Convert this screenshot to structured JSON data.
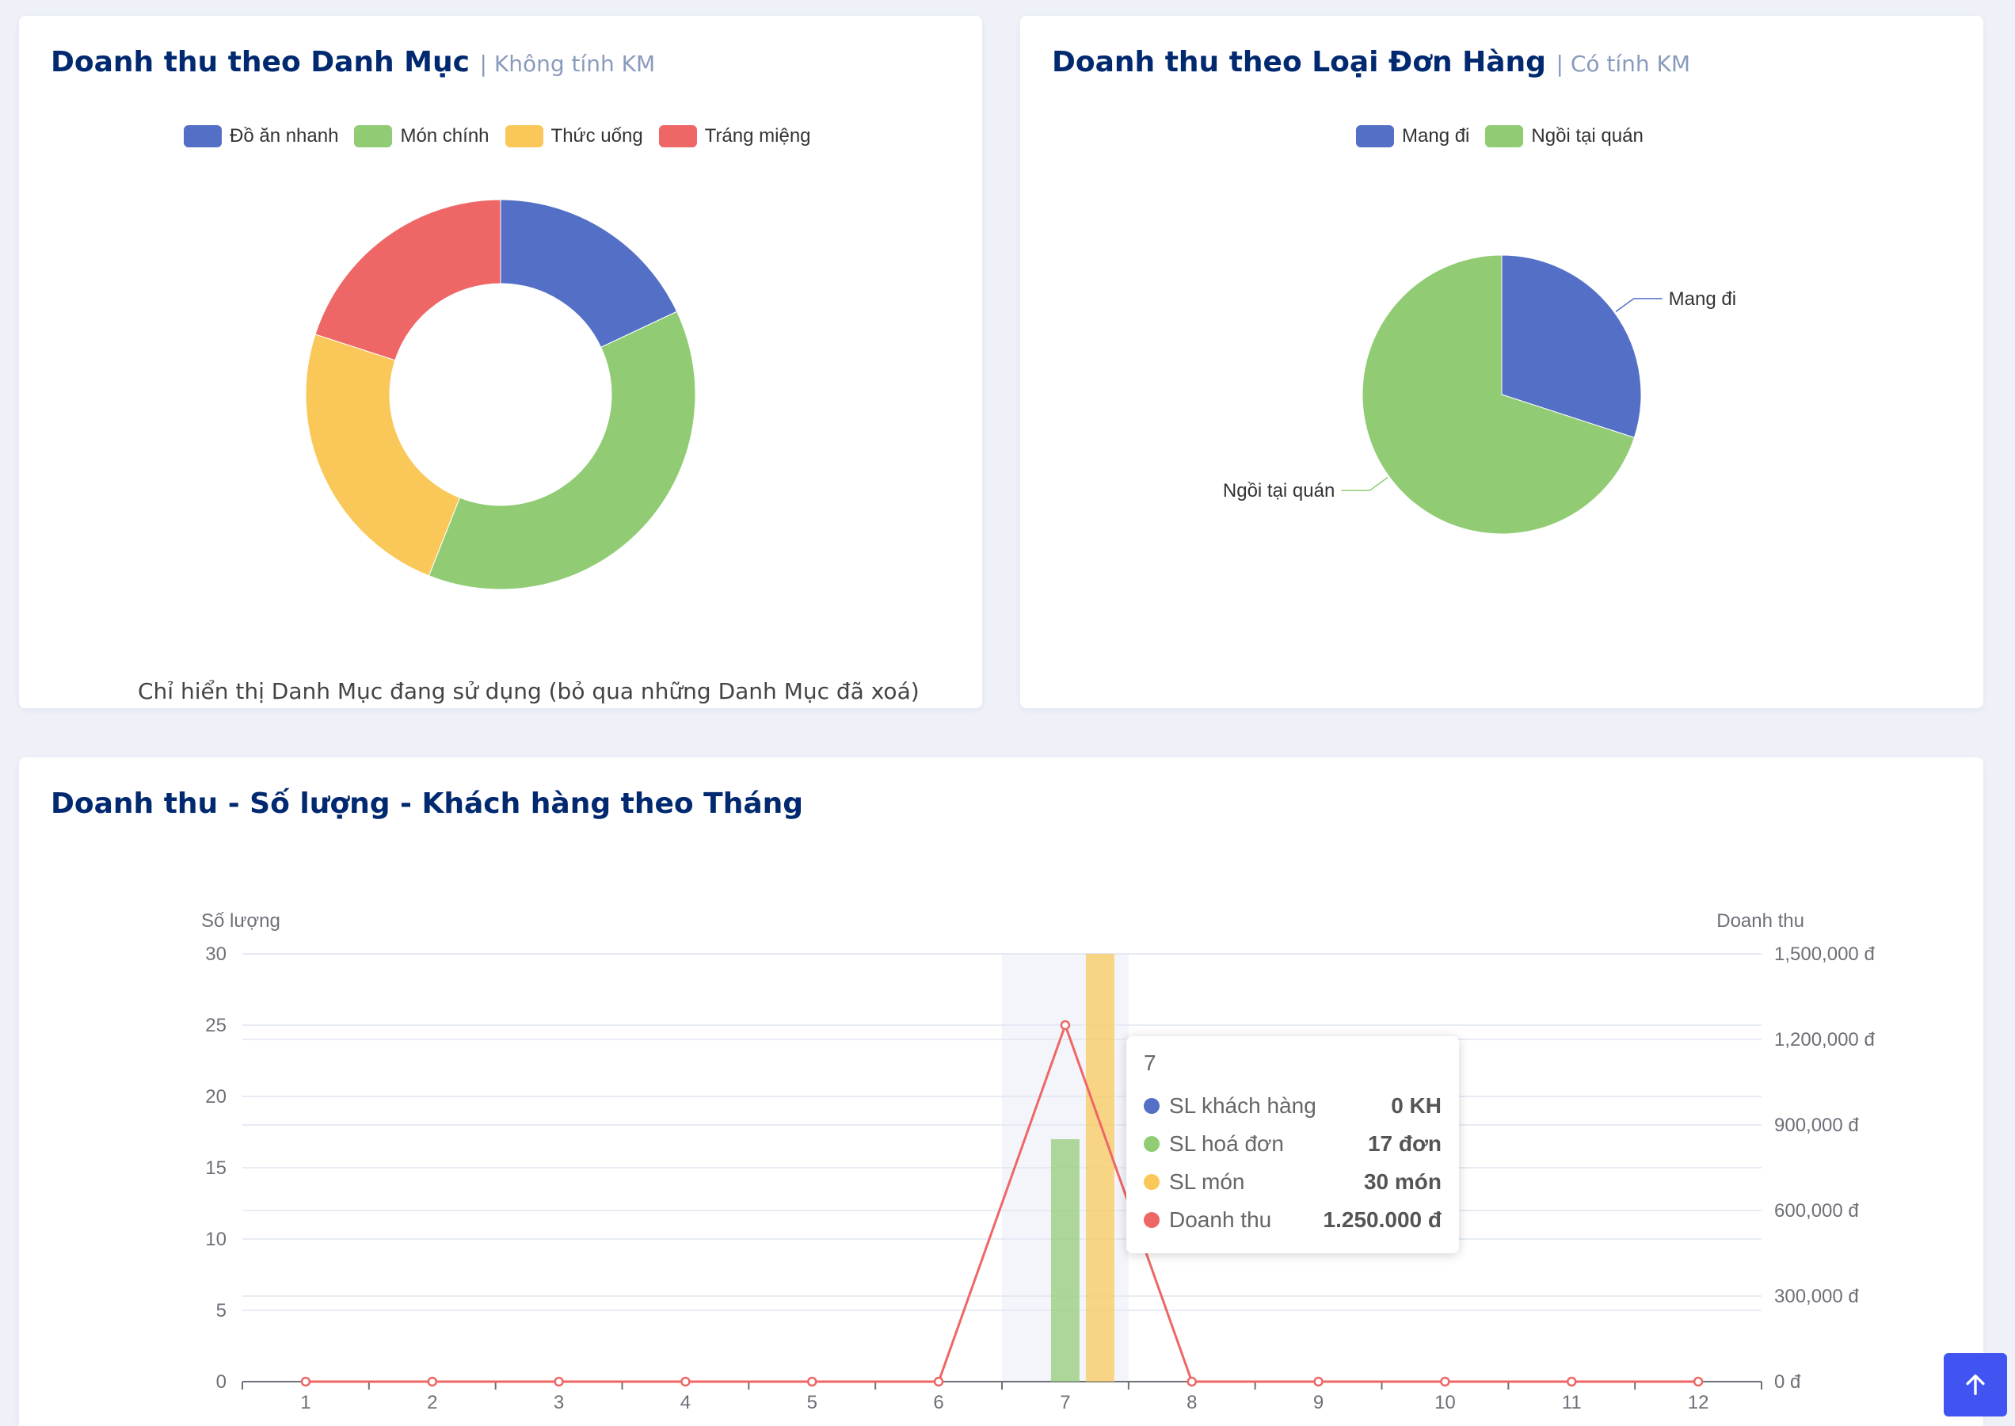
{
  "category_card": {
    "title": "Doanh thu theo Danh Mục",
    "subtitle": "| Không tính KM",
    "footnote": "Chỉ hiển thị Danh Mục đang sử dụng (bỏ qua những Danh Mục đã xoá)"
  },
  "order_type_card": {
    "title": "Doanh thu theo Loại Đơn Hàng",
    "subtitle": "| Có tính KM"
  },
  "monthly_card": {
    "title": "Doanh thu - Số lượng - Khách hàng theo Tháng"
  },
  "tooltip": {
    "title": "7",
    "rows": [
      {
        "label": "SL khách hàng",
        "value": "0 KH",
        "color": "#5470c6"
      },
      {
        "label": "SL hoá đơn",
        "value": "17 đơn",
        "color": "#91cc75"
      },
      {
        "label": "SL món",
        "value": "30 món",
        "color": "#fac858"
      },
      {
        "label": "Doanh thu",
        "value": "1.250.000 đ",
        "color": "#ee6666"
      }
    ]
  },
  "scroll_top": {
    "icon": "arrow-up-icon"
  },
  "chart_data": [
    {
      "type": "pie",
      "variant": "donut",
      "categories": [
        "Đồ ăn nhanh",
        "Món chính",
        "Thức uống",
        "Tráng miệng"
      ],
      "values": [
        18,
        38,
        24,
        20
      ],
      "colors": [
        "#5470c6",
        "#91cc75",
        "#fac858",
        "#ee6666"
      ],
      "legend": "top-center"
    },
    {
      "type": "pie",
      "categories": [
        "Mang đi",
        "Ngồi tại quán"
      ],
      "values": [
        30,
        70
      ],
      "colors": [
        "#5470c6",
        "#91cc75"
      ],
      "legend": "top-center"
    },
    {
      "type": "bar",
      "categories": [
        "1",
        "2",
        "3",
        "4",
        "5",
        "6",
        "7",
        "8",
        "9",
        "10",
        "11",
        "12"
      ],
      "series": [
        {
          "name": "SL khách hàng",
          "type": "bar",
          "axis": "left",
          "values": [
            0,
            0,
            0,
            0,
            0,
            0,
            0,
            0,
            0,
            0,
            0,
            0
          ],
          "color": "#5470c6"
        },
        {
          "name": "SL hoá đơn",
          "type": "bar",
          "axis": "left",
          "values": [
            0,
            0,
            0,
            0,
            0,
            0,
            17,
            0,
            0,
            0,
            0,
            0
          ],
          "color": "#91cc75"
        },
        {
          "name": "SL món",
          "type": "bar",
          "axis": "left",
          "values": [
            0,
            0,
            0,
            0,
            0,
            0,
            30,
            0,
            0,
            0,
            0,
            0
          ],
          "color": "#fac858"
        },
        {
          "name": "Doanh thu",
          "type": "line",
          "axis": "right",
          "values": [
            0,
            0,
            0,
            0,
            0,
            0,
            1250000,
            0,
            0,
            0,
            0,
            0
          ],
          "color": "#ee6666"
        }
      ],
      "ylabel": "Số lượng",
      "ylabel_right": "Doanh thu",
      "ylim": [
        0,
        30
      ],
      "y_ticks": [
        "0",
        "5",
        "10",
        "15",
        "20",
        "25",
        "30"
      ],
      "ylim_right": [
        0,
        1500000
      ],
      "y_ticks_right": [
        "0 đ",
        "300,000 đ",
        "600,000 đ",
        "900,000 đ",
        "1,200,000 đ",
        "1,500,000 đ"
      ],
      "grid": true,
      "highlighted_category": "7"
    }
  ]
}
